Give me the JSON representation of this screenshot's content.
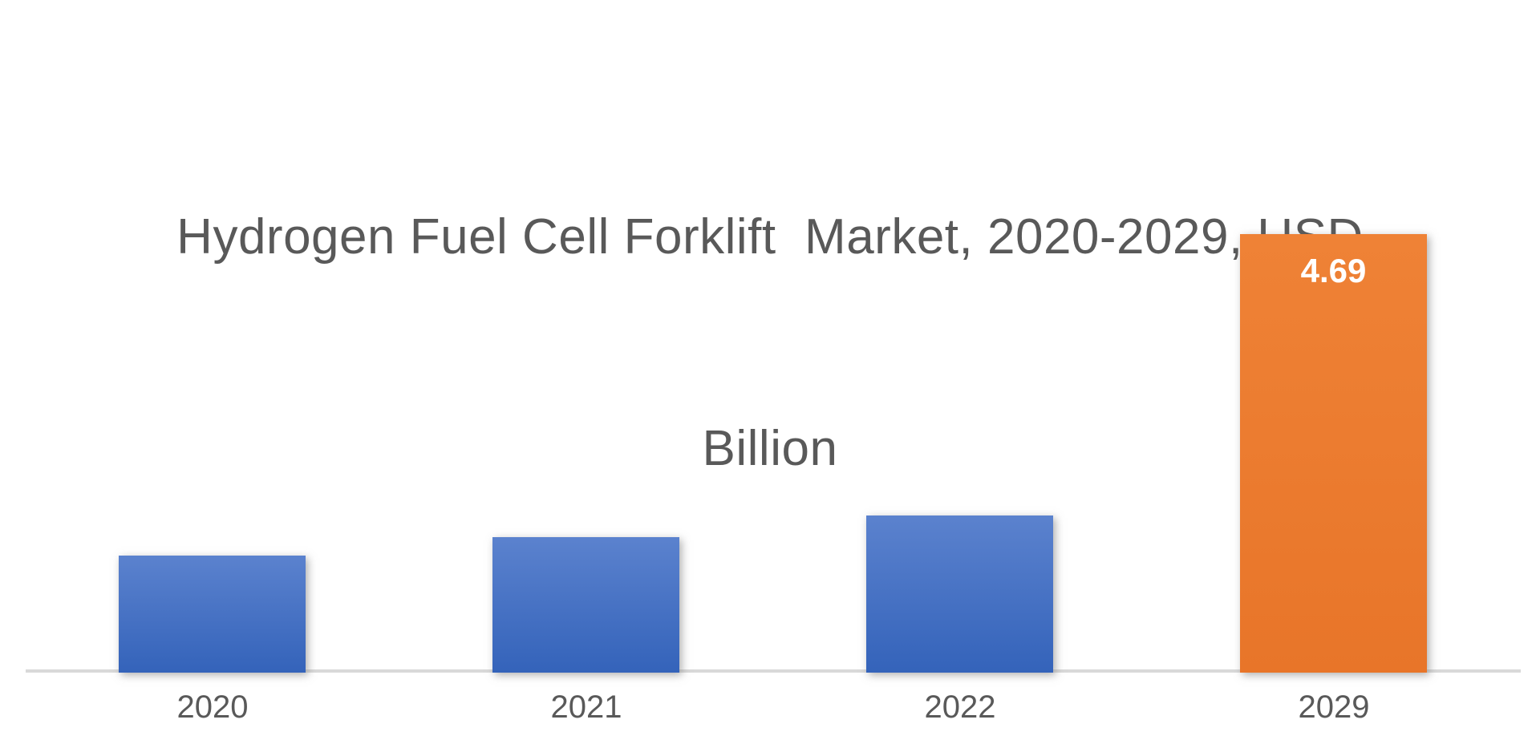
{
  "title": {
    "full": "Hydrogen Fuel Cell Forklift  Market, 2020-2029, USD Billion",
    "line1": "Hydrogen Fuel Cell Forklift  Market, 2020-2029, USD",
    "line2": "Billion"
  },
  "chart_data": {
    "type": "bar",
    "title": "Hydrogen Fuel Cell Forklift  Market, 2020-2029, USD Billion",
    "categories": [
      "2020",
      "2021",
      "2022",
      "2029"
    ],
    "values": [
      1.25,
      1.45,
      1.68,
      4.69
    ],
    "data_labels": [
      null,
      null,
      null,
      "4.69"
    ],
    "unit": "USD Billion",
    "xlabel": "",
    "ylabel": "",
    "ylim": [
      0,
      5
    ],
    "y_axis_visible": false,
    "grid": false,
    "legend_position": "none",
    "highlight_index": 3,
    "series_name": "Hydrogen Fuel Cell Forklift Market"
  },
  "colors": {
    "text_gray": "#595959",
    "axis_gray": "#d9d9d9",
    "bar_blue": "#4472C4",
    "bar_blue_top": "#5b82ce",
    "bar_blue_bottom": "#3463ba",
    "bar_orange": "#ED7D31",
    "bar_orange_top": "#ef8236",
    "bar_orange_bottom": "#e87529",
    "label_white": "#ffffff",
    "background": "#ffffff"
  }
}
